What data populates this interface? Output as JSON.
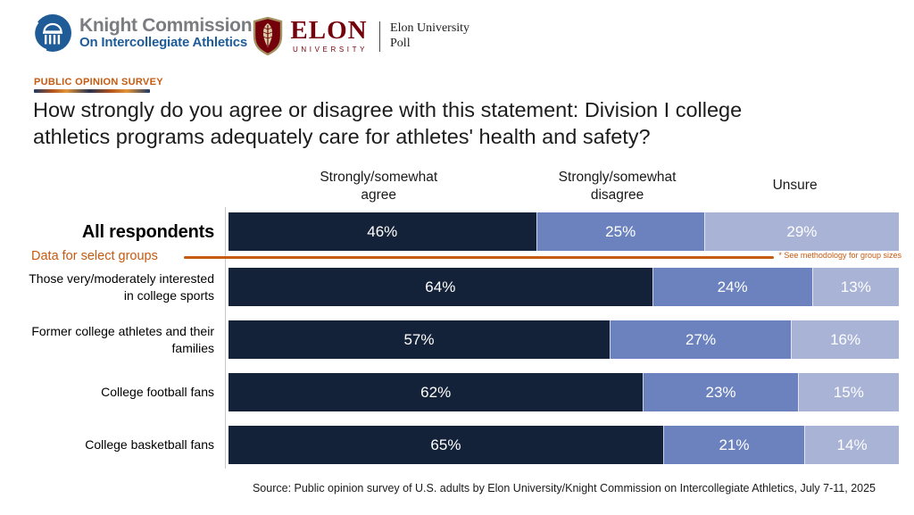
{
  "header": {
    "knight": {
      "line1": "Knight Commission",
      "line2": "On Intercollegiate Athletics"
    },
    "elon": {
      "wordmark": "ELON",
      "university": "UNIVERSITY",
      "poll_line1": "Elon University",
      "poll_line2": "Poll"
    }
  },
  "eyebrow": "PUBLIC OPINION SURVEY",
  "title_lines": [
    "How strongly do you agree or disagree with this statement: Division I college",
    "athletics programs adequately care for athletes' health and safety?"
  ],
  "chart_data": {
    "type": "bar",
    "stacked": true,
    "orientation": "horizontal",
    "unit": "%",
    "xlim": [
      0,
      100
    ],
    "legend_position": "top-as-column-headers",
    "series_labels": [
      "Strongly/somewhat agree",
      "Strongly/somewhat disagree",
      "Unsure"
    ],
    "categories": [
      "All respondents",
      "Those very/moderately interested in college sports",
      "Former college athletes and their families",
      "College football fans",
      "College basketball fans"
    ],
    "series": [
      {
        "name": "Strongly/somewhat agree",
        "values": [
          46,
          64,
          57,
          62,
          65
        ]
      },
      {
        "name": "Strongly/somewhat disagree",
        "values": [
          25,
          24,
          27,
          23,
          21
        ]
      },
      {
        "name": "Unsure",
        "values": [
          29,
          13,
          16,
          15,
          14
        ]
      }
    ],
    "colors": [
      "#142239",
      "#6b82be",
      "#a8b3d6"
    ],
    "emphasis_category_index": 0,
    "divider": {
      "after_category": 0,
      "label": "Data for select groups",
      "note": "* See methodology for group sizes",
      "color": "#c55a11"
    }
  },
  "source": "Source: Public opinion survey of U.S. adults by Elon University/Knight Commission on Intercollegiate Athletics, July 7-11, 2025",
  "brand_colors": {
    "knight_blue": "#1f5c97",
    "knight_gray": "#7b7c7f",
    "elon_maroon": "#73000a",
    "elon_gold": "#a39161",
    "accent_orange": "#c55a11"
  }
}
